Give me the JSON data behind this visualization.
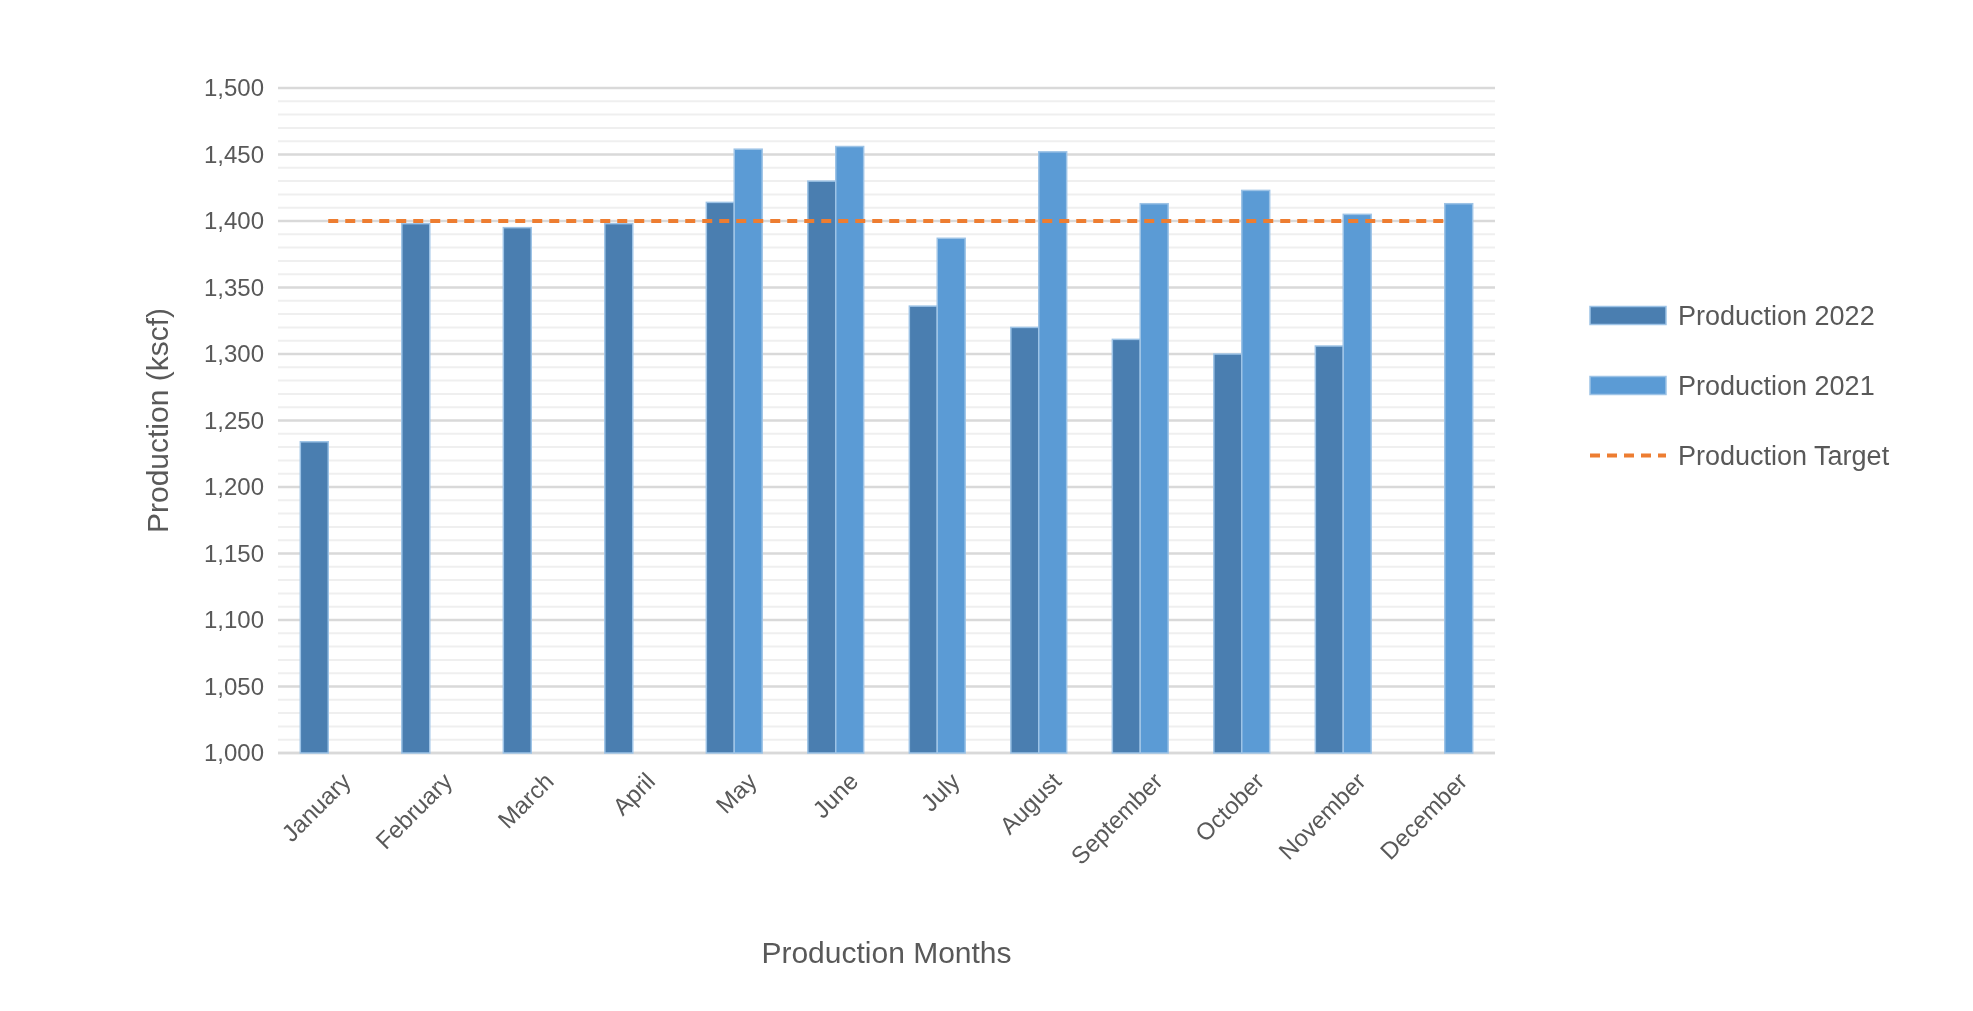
{
  "chart_data": {
    "type": "bar",
    "xlabel": "Production Months",
    "ylabel": "Production (kscf)",
    "categories": [
      "January",
      "February",
      "March",
      "April",
      "May",
      "June",
      "July",
      "August",
      "September",
      "October",
      "November",
      "December"
    ],
    "series": [
      {
        "name": "Production 2022",
        "color": "#4a7eb0",
        "values": [
          1234,
          1398,
          1395,
          1398,
          1414,
          1430,
          1336,
          1320,
          1311,
          1300,
          1306,
          null
        ]
      },
      {
        "name": "Production 2021",
        "color": "#5b9bd5",
        "values": [
          null,
          null,
          null,
          null,
          1454,
          1456,
          1387,
          1452,
          1413,
          1423,
          1405,
          1413
        ]
      },
      {
        "name": "Production Target",
        "type": "line",
        "color": "#ed7d31",
        "line_style": "dashed",
        "marker": "none",
        "values": [
          1400,
          1400,
          1400,
          1400,
          1400,
          1400,
          1400,
          1400,
          1400,
          1400,
          1400,
          1400
        ]
      }
    ],
    "ylim": [
      1000,
      1500
    ],
    "yticks": [
      {
        "value": 1000,
        "label": "1,000"
      },
      {
        "value": 1050,
        "label": "1,050"
      },
      {
        "value": 1100,
        "label": "1,100"
      },
      {
        "value": 1150,
        "label": "1,150"
      },
      {
        "value": 1200,
        "label": "1,200"
      },
      {
        "value": 1250,
        "label": "1,250"
      },
      {
        "value": 1300,
        "label": "1,300"
      },
      {
        "value": 1350,
        "label": "1,350"
      },
      {
        "value": 1400,
        "label": "1,400"
      },
      {
        "value": 1450,
        "label": "1,450"
      },
      {
        "value": 1500,
        "label": "1,500"
      }
    ],
    "grid": "y",
    "legend": "right"
  }
}
